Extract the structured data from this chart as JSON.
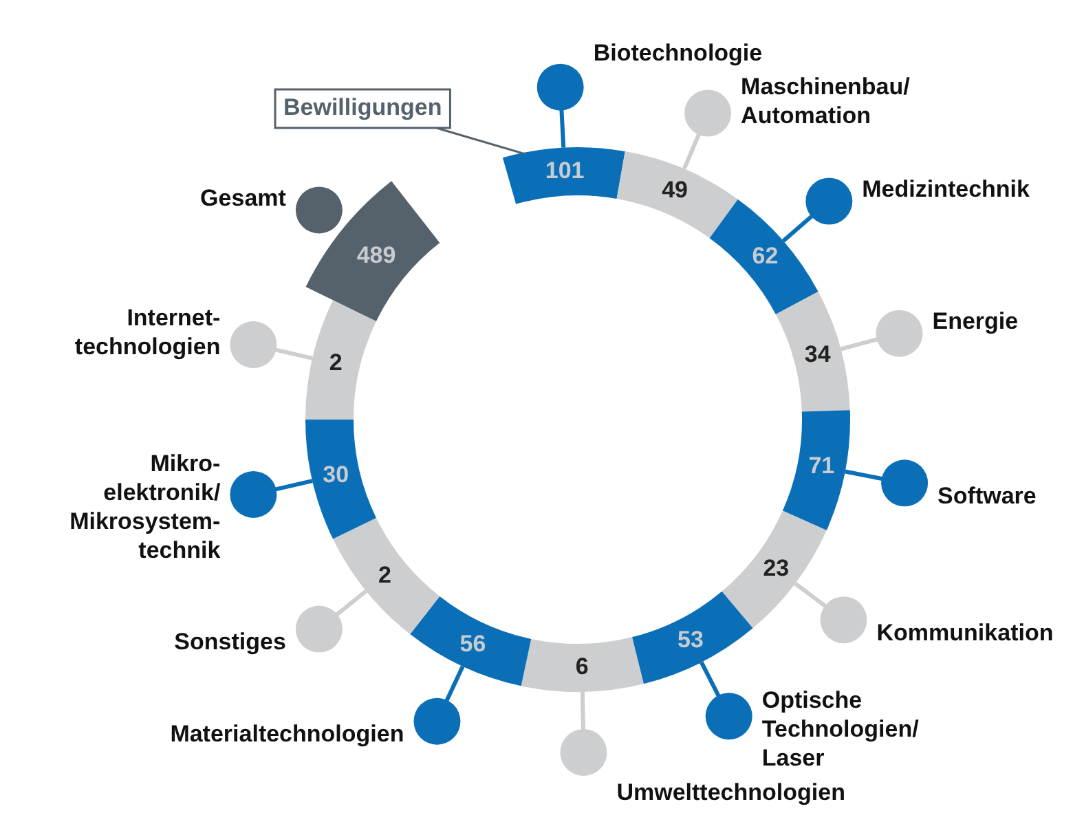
{
  "chart_data": {
    "type": "other",
    "categories": [
      "Biotechnologie",
      "Maschinenbau/\nAutomation",
      "Medizintechnik",
      "Energie",
      "Software",
      "Kommunikation",
      "Optische\nTechnologien/\nLaser",
      "Umwelttechnologien",
      "Materialtechnologien",
      "Sonstiges",
      "Mikro-\nelektronik/\nMikrosystem-\ntechnik",
      "Internet-\ntechnologien",
      "Gesamt"
    ],
    "values": [
      101,
      49,
      62,
      34,
      71,
      23,
      53,
      6,
      56,
      2,
      30,
      2,
      489
    ],
    "colors": [
      "#0b6fb8",
      "#cdced0",
      "#0b6fb8",
      "#cdced0",
      "#0b6fb8",
      "#cdced0",
      "#0b6fb8",
      "#cdced0",
      "#0b6fb8",
      "#cdced0",
      "#0b6fb8",
      "#cdced0",
      "#56626b"
    ],
    "data_labels": true,
    "annotations": [
      "Bewilligungen"
    ]
  }
}
